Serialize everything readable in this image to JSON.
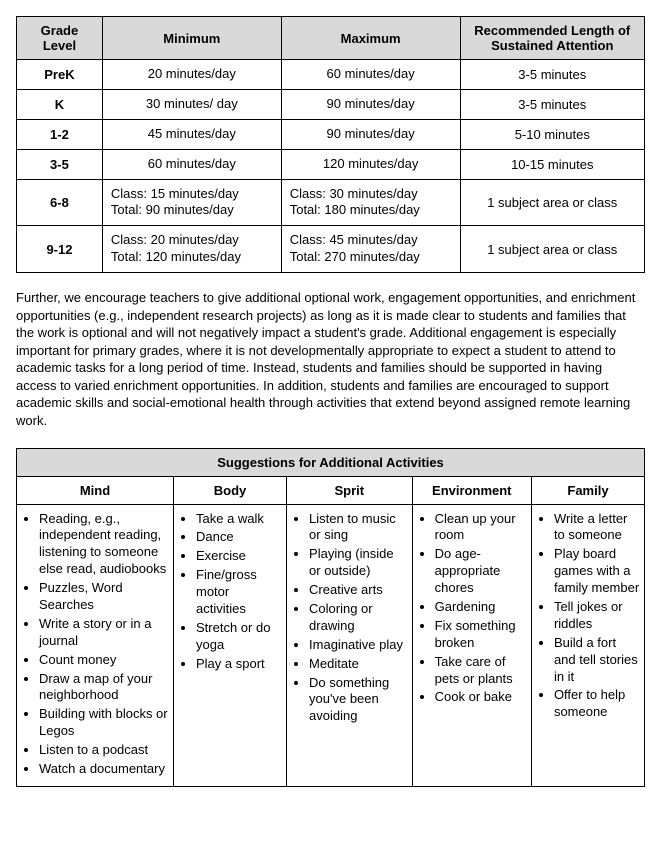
{
  "gradeTable": {
    "headers": [
      "Grade Level",
      "Minimum",
      "Maximum",
      "Recommended Length of Sustained Attention"
    ],
    "rows": [
      {
        "grade": "PreK",
        "min": "20 minutes/day",
        "max": "60 minutes/day",
        "attn": "3-5 minutes"
      },
      {
        "grade": "K",
        "min": "30 minutes/ day",
        "max": "90 minutes/day",
        "attn": "3-5 minutes"
      },
      {
        "grade": "1-2",
        "min": "45 minutes/day",
        "max": "90 minutes/day",
        "attn": "5-10 minutes"
      },
      {
        "grade": "3-5",
        "min": "60 minutes/day",
        "max": "120 minutes/day",
        "attn": "10-15 minutes"
      },
      {
        "grade": "6-8",
        "min": "Class: 15 minutes/day\nTotal: 90 minutes/day",
        "max": "Class: 30 minutes/day\nTotal: 180 minutes/day",
        "attn": "1 subject area or class"
      },
      {
        "grade": "9-12",
        "min": "Class: 20 minutes/day\nTotal: 120 minutes/day",
        "max": "Class: 45 minutes/day\nTotal: 270 minutes/day",
        "attn": "1 subject area or class"
      }
    ]
  },
  "paragraph": "Further, we encourage teachers to give additional optional work, engagement opportunities, and enrichment opportunities (e.g., independent research projects) as long as it is made clear to students and families that the work is optional and will not negatively impact a student's grade. Additional engagement is especially important for primary grades, where it is not developmentally appropriate to expect a student to attend to academic tasks for a long period of time. Instead, students and families should be supported in having access to varied enrichment opportunities. In addition, students and families are encouraged to support academic skills and social-emotional health through activities that extend beyond assigned remote learning work.",
  "suggestions": {
    "title": "Suggestions for Additional Activities",
    "columns": [
      "Mind",
      "Body",
      "Sprit",
      "Environment",
      "Family"
    ],
    "lists": {
      "mind": [
        "Reading, e.g., independent reading, listening to someone else read, audiobooks",
        "Puzzles, Word Searches",
        "Write a story or in a journal",
        "Count money",
        "Draw a map of your neighborhood",
        "Building with blocks or Legos",
        "Listen to a podcast",
        "Watch a documentary"
      ],
      "body": [
        "Take a walk",
        "Dance",
        "Exercise",
        "Fine/gross motor activities",
        "Stretch or do yoga",
        "Play a sport"
      ],
      "spirit": [
        "Listen to music or sing",
        "Playing (inside or outside)",
        "Creative arts",
        "Coloring or drawing",
        "Imaginative play",
        "Meditate",
        "Do something you've been avoiding"
      ],
      "environment": [
        "Clean up your room",
        "Do age-appropriate chores",
        "Gardening",
        "Fix something broken",
        "Take care of pets or plants",
        "Cook or bake"
      ],
      "family": [
        "Write a letter to someone",
        "Play board games with a family member",
        "Tell jokes or riddles",
        "Build a fort and tell stories in it",
        "Offer to help someone"
      ]
    }
  }
}
